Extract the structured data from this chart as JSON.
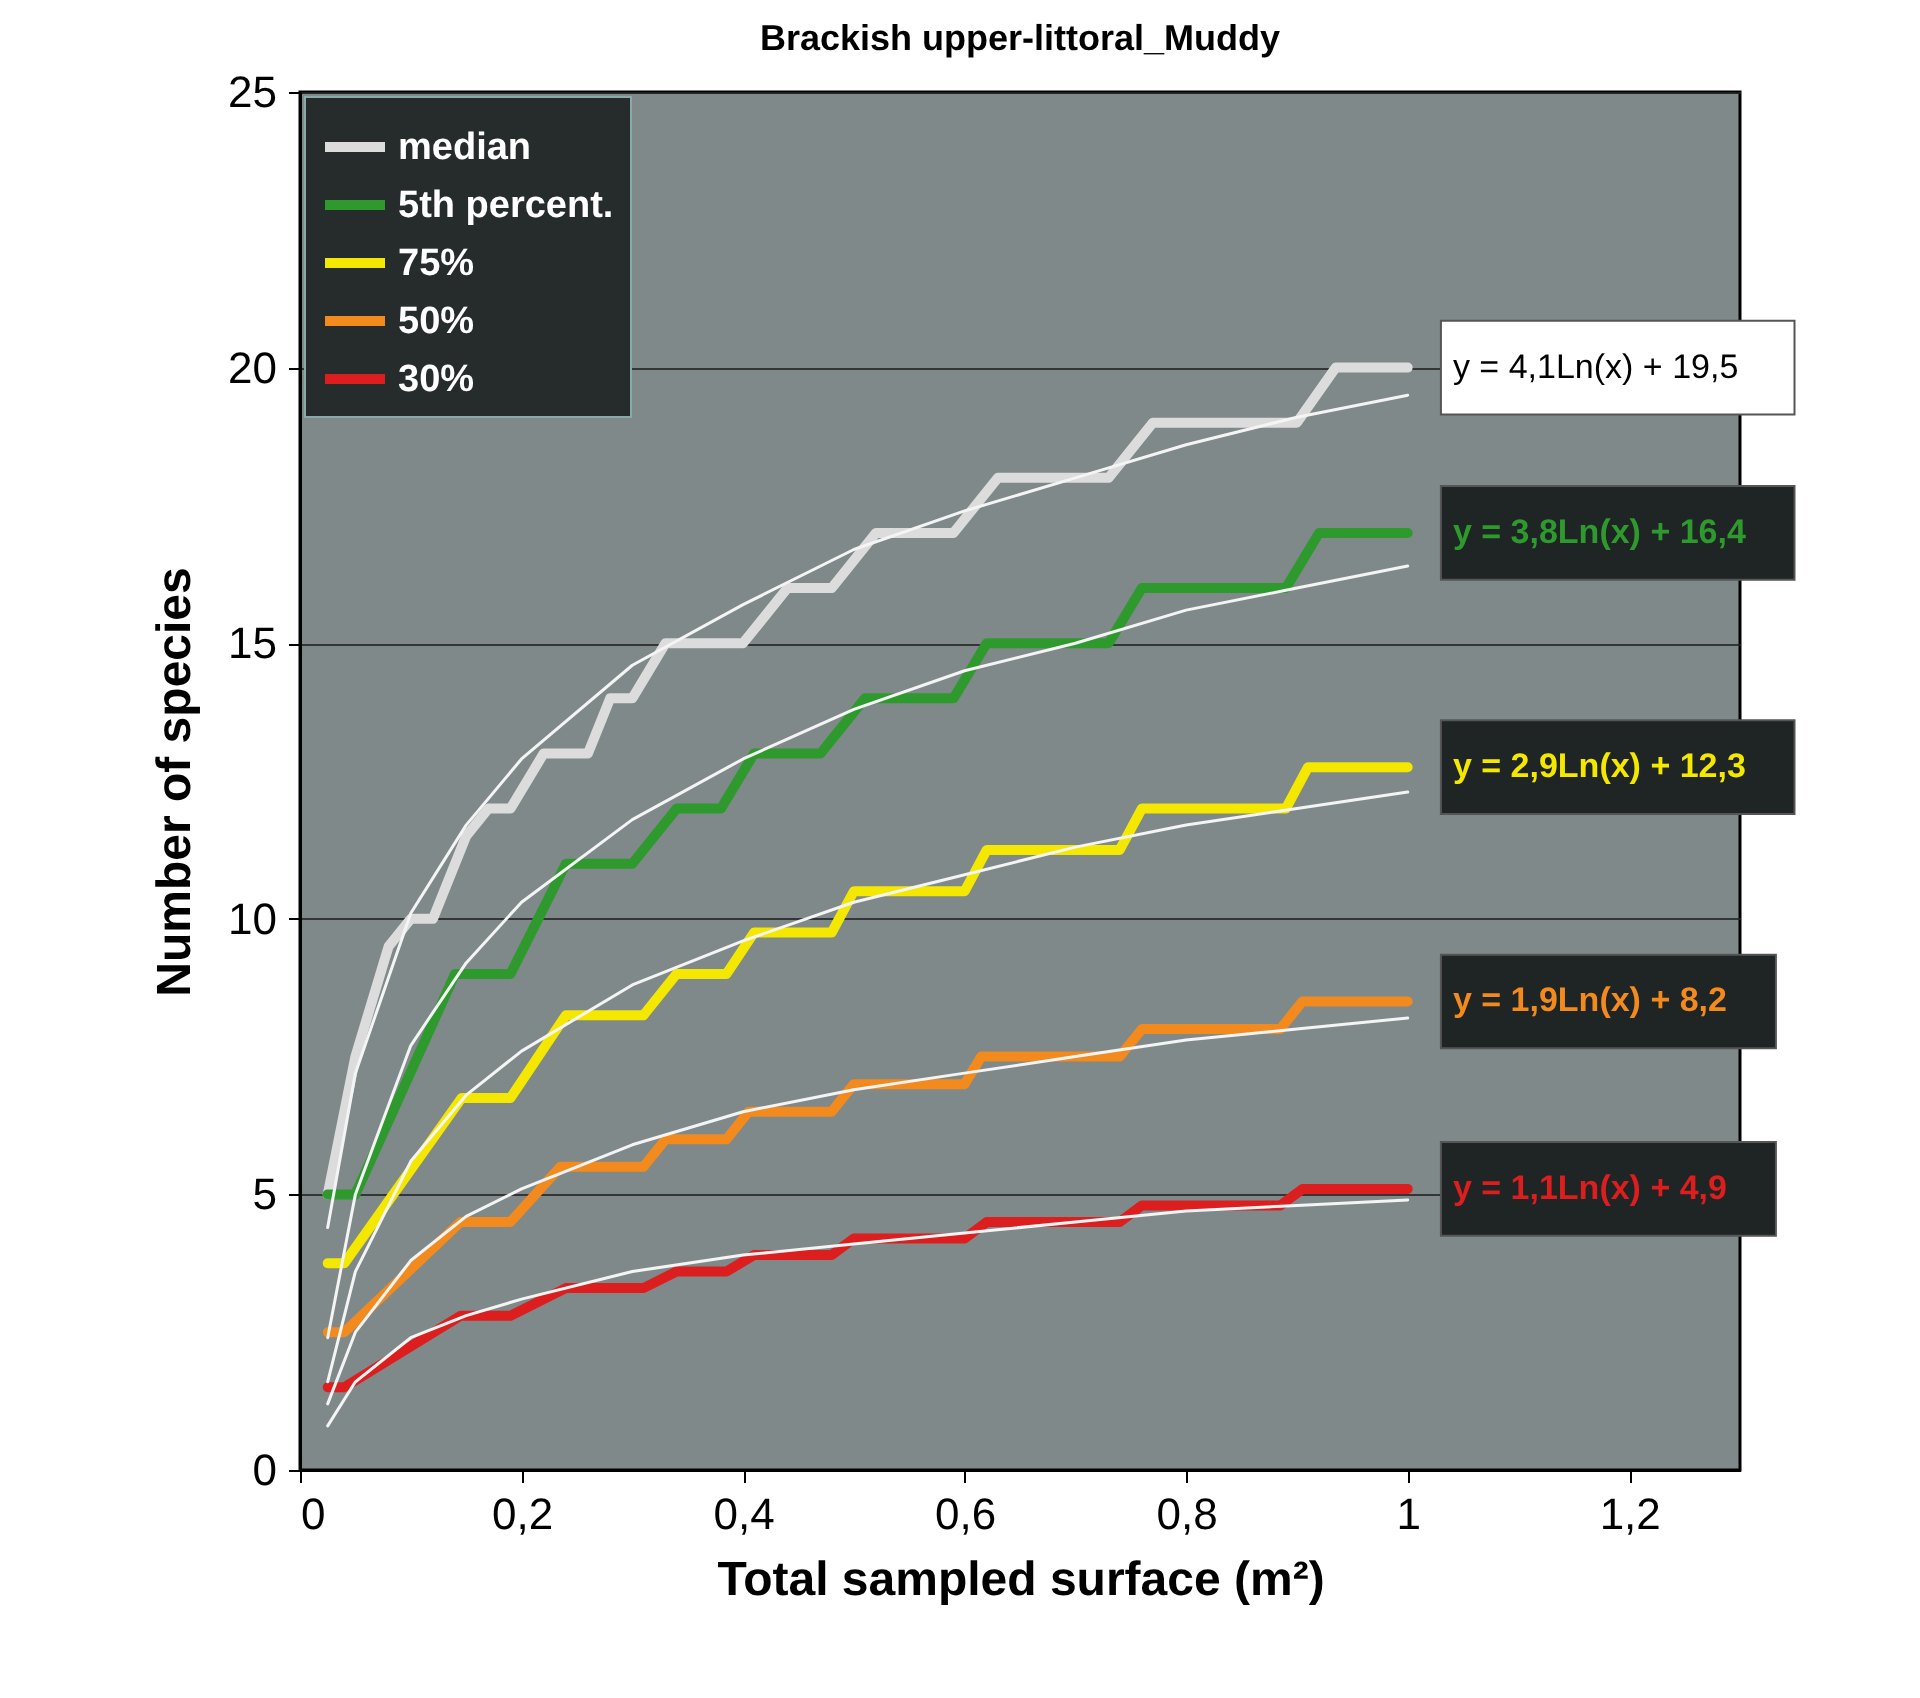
{
  "chart_data": {
    "type": "line",
    "title": "Brackish upper-littoral_Muddy",
    "xlabel": "Total sampled surface (m²)",
    "ylabel": "Number of species",
    "xlim": [
      0,
      1.3
    ],
    "xticks": [
      {
        "value": 0,
        "label": "0"
      },
      {
        "value": 0.2,
        "label": "0,2"
      },
      {
        "value": 0.4,
        "label": "0,4"
      },
      {
        "value": 0.6,
        "label": "0,6"
      },
      {
        "value": 0.8,
        "label": "0,8"
      },
      {
        "value": 1,
        "label": "1"
      },
      {
        "value": 1.2,
        "label": "1,2"
      }
    ],
    "ylim": [
      0,
      25
    ],
    "yticks": [
      0,
      5,
      10,
      15,
      20,
      25
    ],
    "grid": "y",
    "legend": "top left",
    "series": [
      {
        "name": "median",
        "color": "#dcdcdc",
        "x": [
          0.025,
          0.05,
          0.08,
          0.1,
          0.12,
          0.15,
          0.17,
          0.19,
          0.22,
          0.26,
          0.28,
          0.3,
          0.33,
          0.4,
          0.44,
          0.48,
          0.52,
          0.59,
          0.63,
          0.73,
          0.77,
          0.9,
          0.935,
          1.0
        ],
        "values": [
          5,
          7.5,
          9.5,
          10,
          10,
          11.5,
          12,
          12,
          13,
          13,
          14,
          14,
          15,
          15,
          16,
          16,
          17,
          17,
          18,
          18,
          19,
          19,
          20,
          20
        ]
      },
      {
        "name": "5th percent.",
        "color": "#2e9a2e",
        "x": [
          0.025,
          0.05,
          0.14,
          0.19,
          0.24,
          0.3,
          0.34,
          0.38,
          0.41,
          0.47,
          0.51,
          0.59,
          0.62,
          0.73,
          0.76,
          0.89,
          0.92,
          1.0
        ],
        "values": [
          5,
          5,
          9,
          9,
          11,
          11,
          12,
          12,
          13,
          13,
          14,
          14,
          15,
          15,
          16,
          16,
          17,
          17
        ]
      },
      {
        "name": "75%",
        "color": "#f5e800",
        "x": [
          0.025,
          0.04,
          0.146,
          0.19,
          0.24,
          0.31,
          0.34,
          0.385,
          0.41,
          0.48,
          0.5,
          0.6,
          0.62,
          0.74,
          0.76,
          0.89,
          0.91,
          1.0
        ],
        "values": [
          3.75,
          3.75,
          6.75,
          6.75,
          8.25,
          8.25,
          9,
          9,
          9.75,
          9.75,
          10.5,
          10.5,
          11.25,
          11.25,
          12,
          12,
          12.75,
          12.75
        ]
      },
      {
        "name": "50%",
        "color": "#f28a1e",
        "x": [
          0.025,
          0.04,
          0.145,
          0.19,
          0.235,
          0.31,
          0.33,
          0.385,
          0.405,
          0.48,
          0.5,
          0.6,
          0.615,
          0.74,
          0.76,
          0.885,
          0.905,
          1.0
        ],
        "values": [
          2.5,
          2.5,
          4.5,
          4.5,
          5.5,
          5.5,
          6,
          6,
          6.5,
          6.5,
          7,
          7,
          7.5,
          7.5,
          8,
          8,
          8.5,
          8.5
        ]
      },
      {
        "name": "30%",
        "color": "#dc1e1e",
        "x": [
          0.025,
          0.04,
          0.145,
          0.19,
          0.24,
          0.31,
          0.34,
          0.385,
          0.41,
          0.48,
          0.5,
          0.6,
          0.62,
          0.74,
          0.76,
          0.885,
          0.905,
          1.0
        ],
        "values": [
          1.5,
          1.5,
          2.8,
          2.8,
          3.3,
          3.3,
          3.6,
          3.6,
          3.9,
          3.9,
          4.2,
          4.2,
          4.5,
          4.5,
          4.8,
          4.8,
          5.1,
          5.1
        ]
      },
      {
        "type": "line",
        "color": "#f4f4f4",
        "x": [
          0.025,
          0.05,
          0.1,
          0.15,
          0.2,
          0.3,
          0.4,
          0.5,
          0.6,
          0.7,
          0.8,
          0.9,
          1.0
        ],
        "values": [
          4.4,
          7.2,
          10.1,
          11.7,
          12.9,
          14.6,
          15.7,
          16.7,
          17.4,
          18.0,
          18.6,
          19.1,
          19.5
        ]
      },
      {
        "type": "line",
        "color": "#f4f4f4",
        "x": [
          0.025,
          0.05,
          0.1,
          0.15,
          0.2,
          0.3,
          0.4,
          0.5,
          0.6,
          0.7,
          0.8,
          0.9,
          1.0
        ],
        "values": [
          2.4,
          5.0,
          7.7,
          9.2,
          10.3,
          11.8,
          12.9,
          13.8,
          14.5,
          15.0,
          15.6,
          16.0,
          16.4
        ]
      },
      {
        "type": "line",
        "color": "#f4f4f4",
        "x": [
          0.025,
          0.05,
          0.1,
          0.15,
          0.2,
          0.3,
          0.4,
          0.5,
          0.6,
          0.7,
          0.8,
          0.9,
          1.0
        ],
        "values": [
          1.6,
          3.6,
          5.6,
          6.8,
          7.6,
          8.8,
          9.6,
          10.3,
          10.8,
          11.3,
          11.7,
          12.0,
          12.3
        ]
      },
      {
        "type": "line",
        "color": "#f4f4f4",
        "x": [
          0.025,
          0.05,
          0.1,
          0.15,
          0.2,
          0.3,
          0.4,
          0.5,
          0.6,
          0.7,
          0.8,
          0.9,
          1.0
        ],
        "values": [
          1.2,
          2.5,
          3.8,
          4.6,
          5.1,
          5.9,
          6.5,
          6.9,
          7.2,
          7.5,
          7.8,
          8.0,
          8.2
        ]
      },
      {
        "type": "line",
        "color": "#f4f4f4",
        "x": [
          0.025,
          0.05,
          0.1,
          0.15,
          0.2,
          0.3,
          0.4,
          0.5,
          0.6,
          0.7,
          0.8,
          0.9,
          1.0
        ],
        "values": [
          0.8,
          1.6,
          2.4,
          2.8,
          3.1,
          3.6,
          3.9,
          4.1,
          4.3,
          4.5,
          4.7,
          4.8,
          4.9
        ]
      }
    ],
    "annotations": [
      "y = 4,1Ln(x) + 19,5",
      "y = 3,8Ln(x) + 16,4",
      "y = 2,9Ln(x) + 12,3",
      "y = 1,9Ln(x) + 8,2",
      "y = 1,1Ln(x) + 4,9"
    ]
  }
}
